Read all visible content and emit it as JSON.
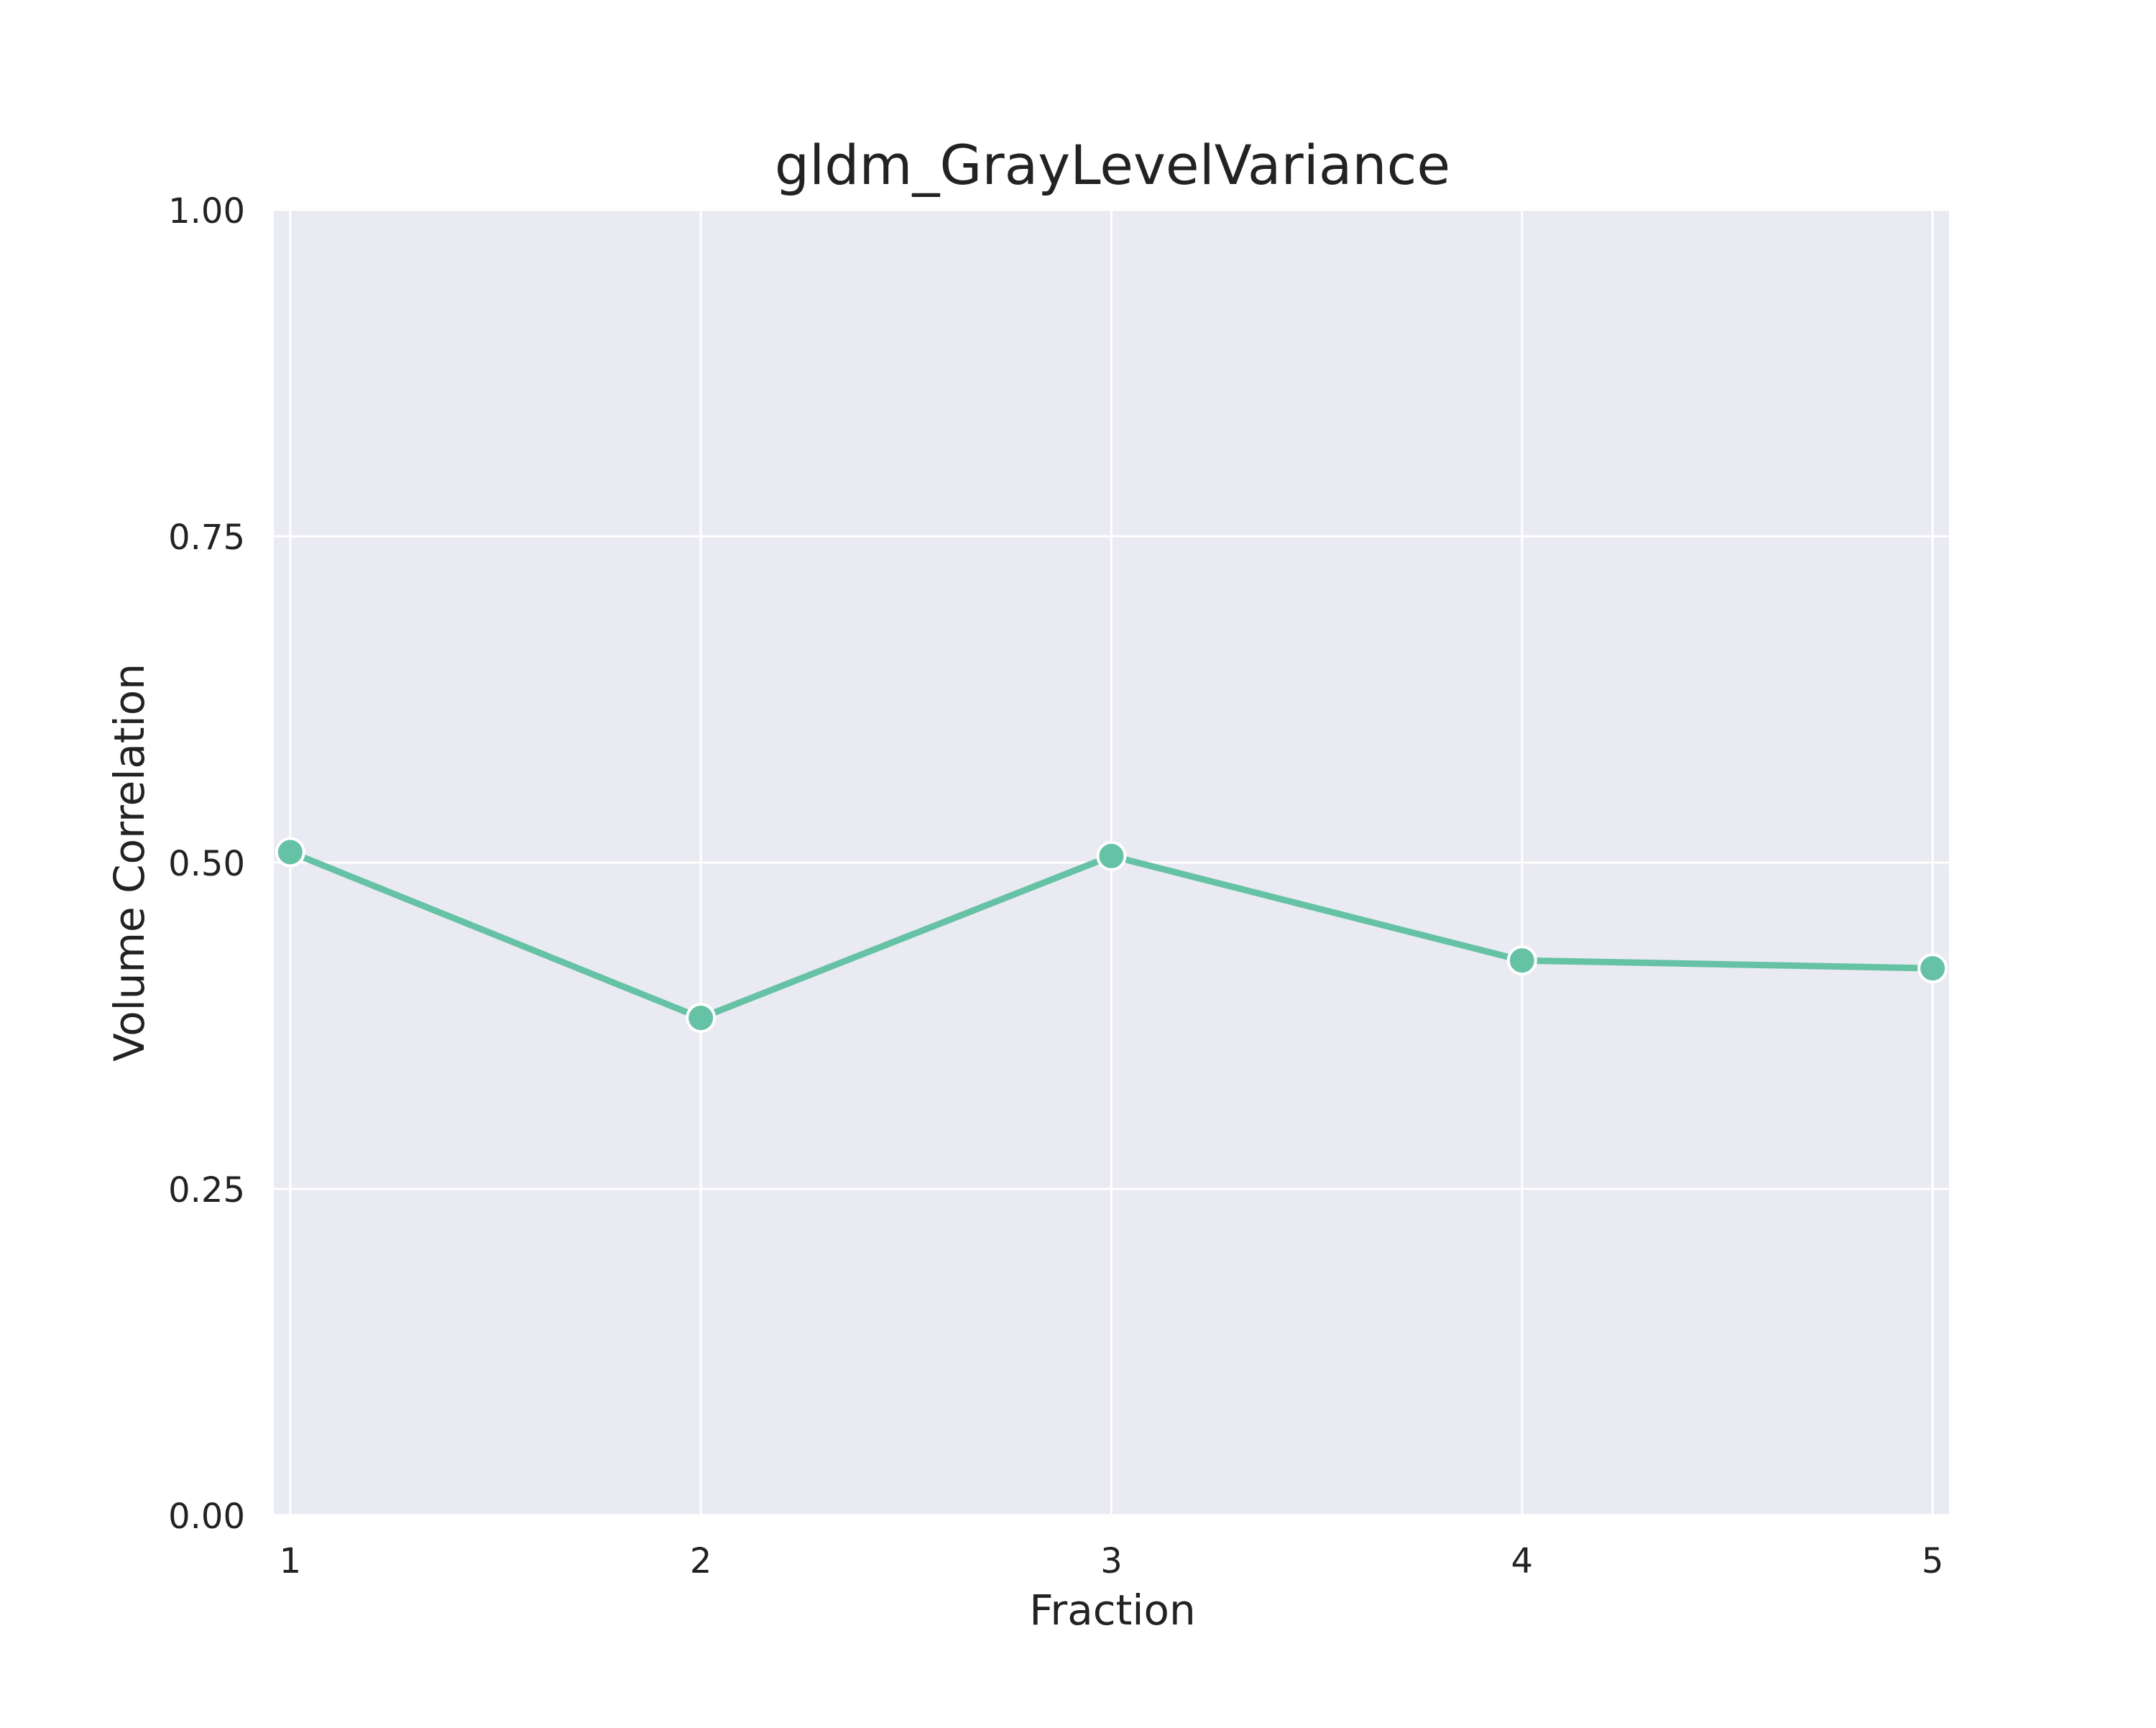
{
  "chart_data": {
    "type": "line",
    "title": "gldm_GrayLevelVariance",
    "xlabel": "Fraction",
    "ylabel": "Volume Correlation",
    "x": [
      1,
      2,
      3,
      4,
      5
    ],
    "series": [
      {
        "values": [
          0.508,
          0.381,
          0.505,
          0.425,
          0.419
        ]
      }
    ],
    "xlim": [
      0.96,
      5.04
    ],
    "ylim": [
      0.0,
      1.0
    ],
    "xticks": [
      1,
      2,
      3,
      4,
      5
    ],
    "xtick_labels": [
      "1",
      "2",
      "3",
      "4",
      "5"
    ],
    "yticks": [
      0.0,
      0.25,
      0.5,
      0.75,
      1.0
    ],
    "ytick_labels": [
      "0.00",
      "0.25",
      "0.50",
      "0.75",
      "1.00"
    ],
    "grid": true,
    "legend": "none",
    "colors": {
      "background": "#eaeaf2",
      "grid": "#ffffff",
      "line": "#66c2a5",
      "marker_edge": "#ffffff",
      "text": "#222222"
    }
  }
}
